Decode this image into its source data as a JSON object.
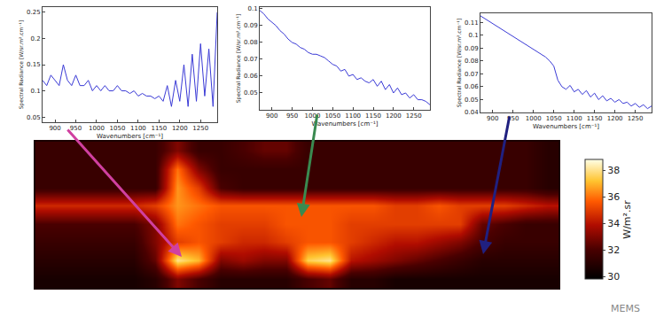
{
  "chart_data": [
    {
      "type": "line",
      "xlabel": "Wavenumbers [cm⁻¹]",
      "ylabel": "Spectral Radiance [W/sr.m².cm⁻¹]",
      "x": [
        870,
        880,
        890,
        900,
        910,
        920,
        930,
        940,
        950,
        960,
        970,
        980,
        990,
        1000,
        1010,
        1020,
        1030,
        1040,
        1050,
        1060,
        1070,
        1080,
        1090,
        1100,
        1110,
        1120,
        1130,
        1140,
        1150,
        1160,
        1170,
        1180,
        1190,
        1200,
        1210,
        1220,
        1230,
        1240,
        1250,
        1260,
        1270,
        1280,
        1290
      ],
      "series": [
        {
          "color": "#3a3ad6",
          "values": [
            0.12,
            0.11,
            0.13,
            0.12,
            0.11,
            0.15,
            0.12,
            0.11,
            0.13,
            0.11,
            0.11,
            0.12,
            0.1,
            0.11,
            0.1,
            0.11,
            0.1,
            0.1,
            0.11,
            0.1,
            0.1,
            0.095,
            0.1,
            0.09,
            0.095,
            0.09,
            0.09,
            0.085,
            0.09,
            0.08,
            0.11,
            0.07,
            0.12,
            0.08,
            0.15,
            0.07,
            0.17,
            0.08,
            0.19,
            0.09,
            0.18,
            0.07,
            0.25
          ]
        }
      ],
      "xlim": [
        870,
        1290
      ],
      "xticks": [
        900,
        950,
        1000,
        1050,
        1100,
        1150,
        1200,
        1250
      ],
      "ylim": [
        0.04,
        0.26
      ],
      "yticks": [
        0.05,
        0.1,
        0.15,
        0.2,
        0.25
      ],
      "grid": false
    },
    {
      "type": "line",
      "xlabel": "Wavenumbers [cm⁻¹]",
      "ylabel": "Spectral Radiance [W/sr.m².cm⁻¹]",
      "x": [
        870,
        880,
        890,
        900,
        910,
        920,
        930,
        940,
        950,
        960,
        970,
        980,
        990,
        1000,
        1010,
        1020,
        1030,
        1040,
        1050,
        1060,
        1070,
        1080,
        1090,
        1100,
        1110,
        1120,
        1130,
        1140,
        1150,
        1160,
        1170,
        1180,
        1190,
        1200,
        1210,
        1220,
        1230,
        1240,
        1250,
        1260,
        1270,
        1280,
        1290
      ],
      "series": [
        {
          "color": "#3a3ad6",
          "values": [
            0.099,
            0.097,
            0.094,
            0.092,
            0.09,
            0.087,
            0.085,
            0.082,
            0.08,
            0.079,
            0.077,
            0.076,
            0.074,
            0.073,
            0.073,
            0.072,
            0.071,
            0.069,
            0.067,
            0.066,
            0.063,
            0.064,
            0.06,
            0.061,
            0.058,
            0.059,
            0.057,
            0.056,
            0.058,
            0.054,
            0.057,
            0.052,
            0.055,
            0.05,
            0.053,
            0.049,
            0.05,
            0.047,
            0.049,
            0.046,
            0.046,
            0.045,
            0.043
          ]
        }
      ],
      "xlim": [
        870,
        1290
      ],
      "xticks": [
        900,
        950,
        1000,
        1050,
        1100,
        1150,
        1200,
        1250
      ],
      "ylim": [
        0.04,
        0.101
      ],
      "yticks": [
        0.05,
        0.06,
        0.07,
        0.08,
        0.09,
        0.1
      ],
      "grid": false
    },
    {
      "type": "line",
      "xlabel": "Wavenumbers [cm⁻¹]",
      "ylabel": "Spectral Radiance [W/sr.m².cm⁻¹]",
      "x": [
        870,
        880,
        890,
        900,
        910,
        920,
        930,
        940,
        950,
        960,
        970,
        980,
        990,
        1000,
        1010,
        1020,
        1030,
        1040,
        1050,
        1060,
        1070,
        1080,
        1090,
        1100,
        1110,
        1120,
        1130,
        1140,
        1150,
        1160,
        1170,
        1180,
        1190,
        1200,
        1210,
        1220,
        1230,
        1240,
        1250,
        1260,
        1270,
        1280,
        1290
      ],
      "series": [
        {
          "color": "#3a3ad6",
          "values": [
            0.115,
            0.113,
            0.111,
            0.109,
            0.107,
            0.105,
            0.103,
            0.101,
            0.099,
            0.097,
            0.095,
            0.093,
            0.091,
            0.089,
            0.087,
            0.085,
            0.083,
            0.08,
            0.076,
            0.065,
            0.06,
            0.058,
            0.061,
            0.056,
            0.058,
            0.054,
            0.057,
            0.052,
            0.055,
            0.05,
            0.053,
            0.049,
            0.051,
            0.048,
            0.05,
            0.047,
            0.048,
            0.045,
            0.047,
            0.044,
            0.046,
            0.043,
            0.045
          ]
        }
      ],
      "xlim": [
        870,
        1290
      ],
      "xticks": [
        900,
        950,
        1000,
        1050,
        1100,
        1150,
        1200,
        1250
      ],
      "ylim": [
        0.04,
        0.117
      ],
      "yticks": [
        0.04,
        0.05,
        0.06,
        0.07,
        0.08,
        0.09,
        0.1,
        0.11
      ],
      "grid": false
    },
    {
      "type": "heatmap",
      "tick_labels": false,
      "cells": [
        [
          31.5,
          31.5,
          31.5,
          31.5,
          31.5,
          31.5,
          33,
          31.5,
          31.5,
          32,
          32.5,
          32.5,
          31.5,
          31.5,
          31.5,
          31.5,
          31.5,
          31.5,
          31.5,
          31.5,
          31.5,
          31.5,
          31.5,
          31
        ],
        [
          31.5,
          31.5,
          31.5,
          31.5,
          31.5,
          31.5,
          36,
          33,
          31.5,
          31.5,
          31.5,
          31.5,
          31.5,
          31.5,
          31.5,
          31.5,
          31.5,
          31.5,
          31.5,
          31.5,
          31.5,
          31.5,
          31.5,
          31
        ],
        [
          31.5,
          31.5,
          31.5,
          31.5,
          31.5,
          31.5,
          36.5,
          35,
          32,
          31.5,
          31.5,
          31.5,
          31.5,
          31.5,
          31.5,
          31.5,
          31.5,
          31.5,
          31.5,
          31.5,
          31.5,
          31.5,
          31.5,
          31
        ],
        [
          34.5,
          34.5,
          34.5,
          34.5,
          34.5,
          35,
          36.5,
          36,
          35.5,
          35.5,
          35.5,
          35.5,
          35.5,
          35.5,
          35.5,
          35.5,
          35,
          35,
          35.5,
          35,
          35,
          35,
          34.5,
          34
        ],
        [
          32,
          32,
          32,
          32,
          32,
          33,
          36,
          35.5,
          35,
          35,
          35,
          35.5,
          35.5,
          35.5,
          35,
          35,
          35,
          35,
          35,
          35,
          32.5,
          32,
          31.5,
          31.5
        ],
        [
          31.5,
          31.5,
          31.5,
          31.5,
          31.5,
          33,
          35,
          35.5,
          35,
          34.5,
          34.5,
          35,
          35.5,
          35.5,
          35,
          34.5,
          34,
          34,
          33.5,
          33,
          32,
          31.5,
          31.5,
          31.5
        ],
        [
          31,
          31,
          31,
          31,
          31,
          32.5,
          38,
          37,
          33,
          33.5,
          33,
          33,
          37.5,
          38,
          34,
          33.5,
          33,
          32.5,
          32,
          31.5,
          31,
          31,
          31,
          31
        ],
        [
          30.5,
          30.5,
          30.5,
          30.5,
          30.5,
          31,
          33,
          32,
          31,
          31,
          31,
          31,
          32,
          32.5,
          31,
          31,
          30.5,
          30.5,
          30.5,
          30.5,
          30.5,
          30.5,
          30.5,
          30.5
        ]
      ],
      "colorbar": {
        "title": "W/m².sr",
        "range": [
          29.8,
          38.8
        ],
        "ticks": [
          30,
          32,
          34,
          36,
          38
        ]
      }
    }
  ],
  "watermark": "MEMS"
}
